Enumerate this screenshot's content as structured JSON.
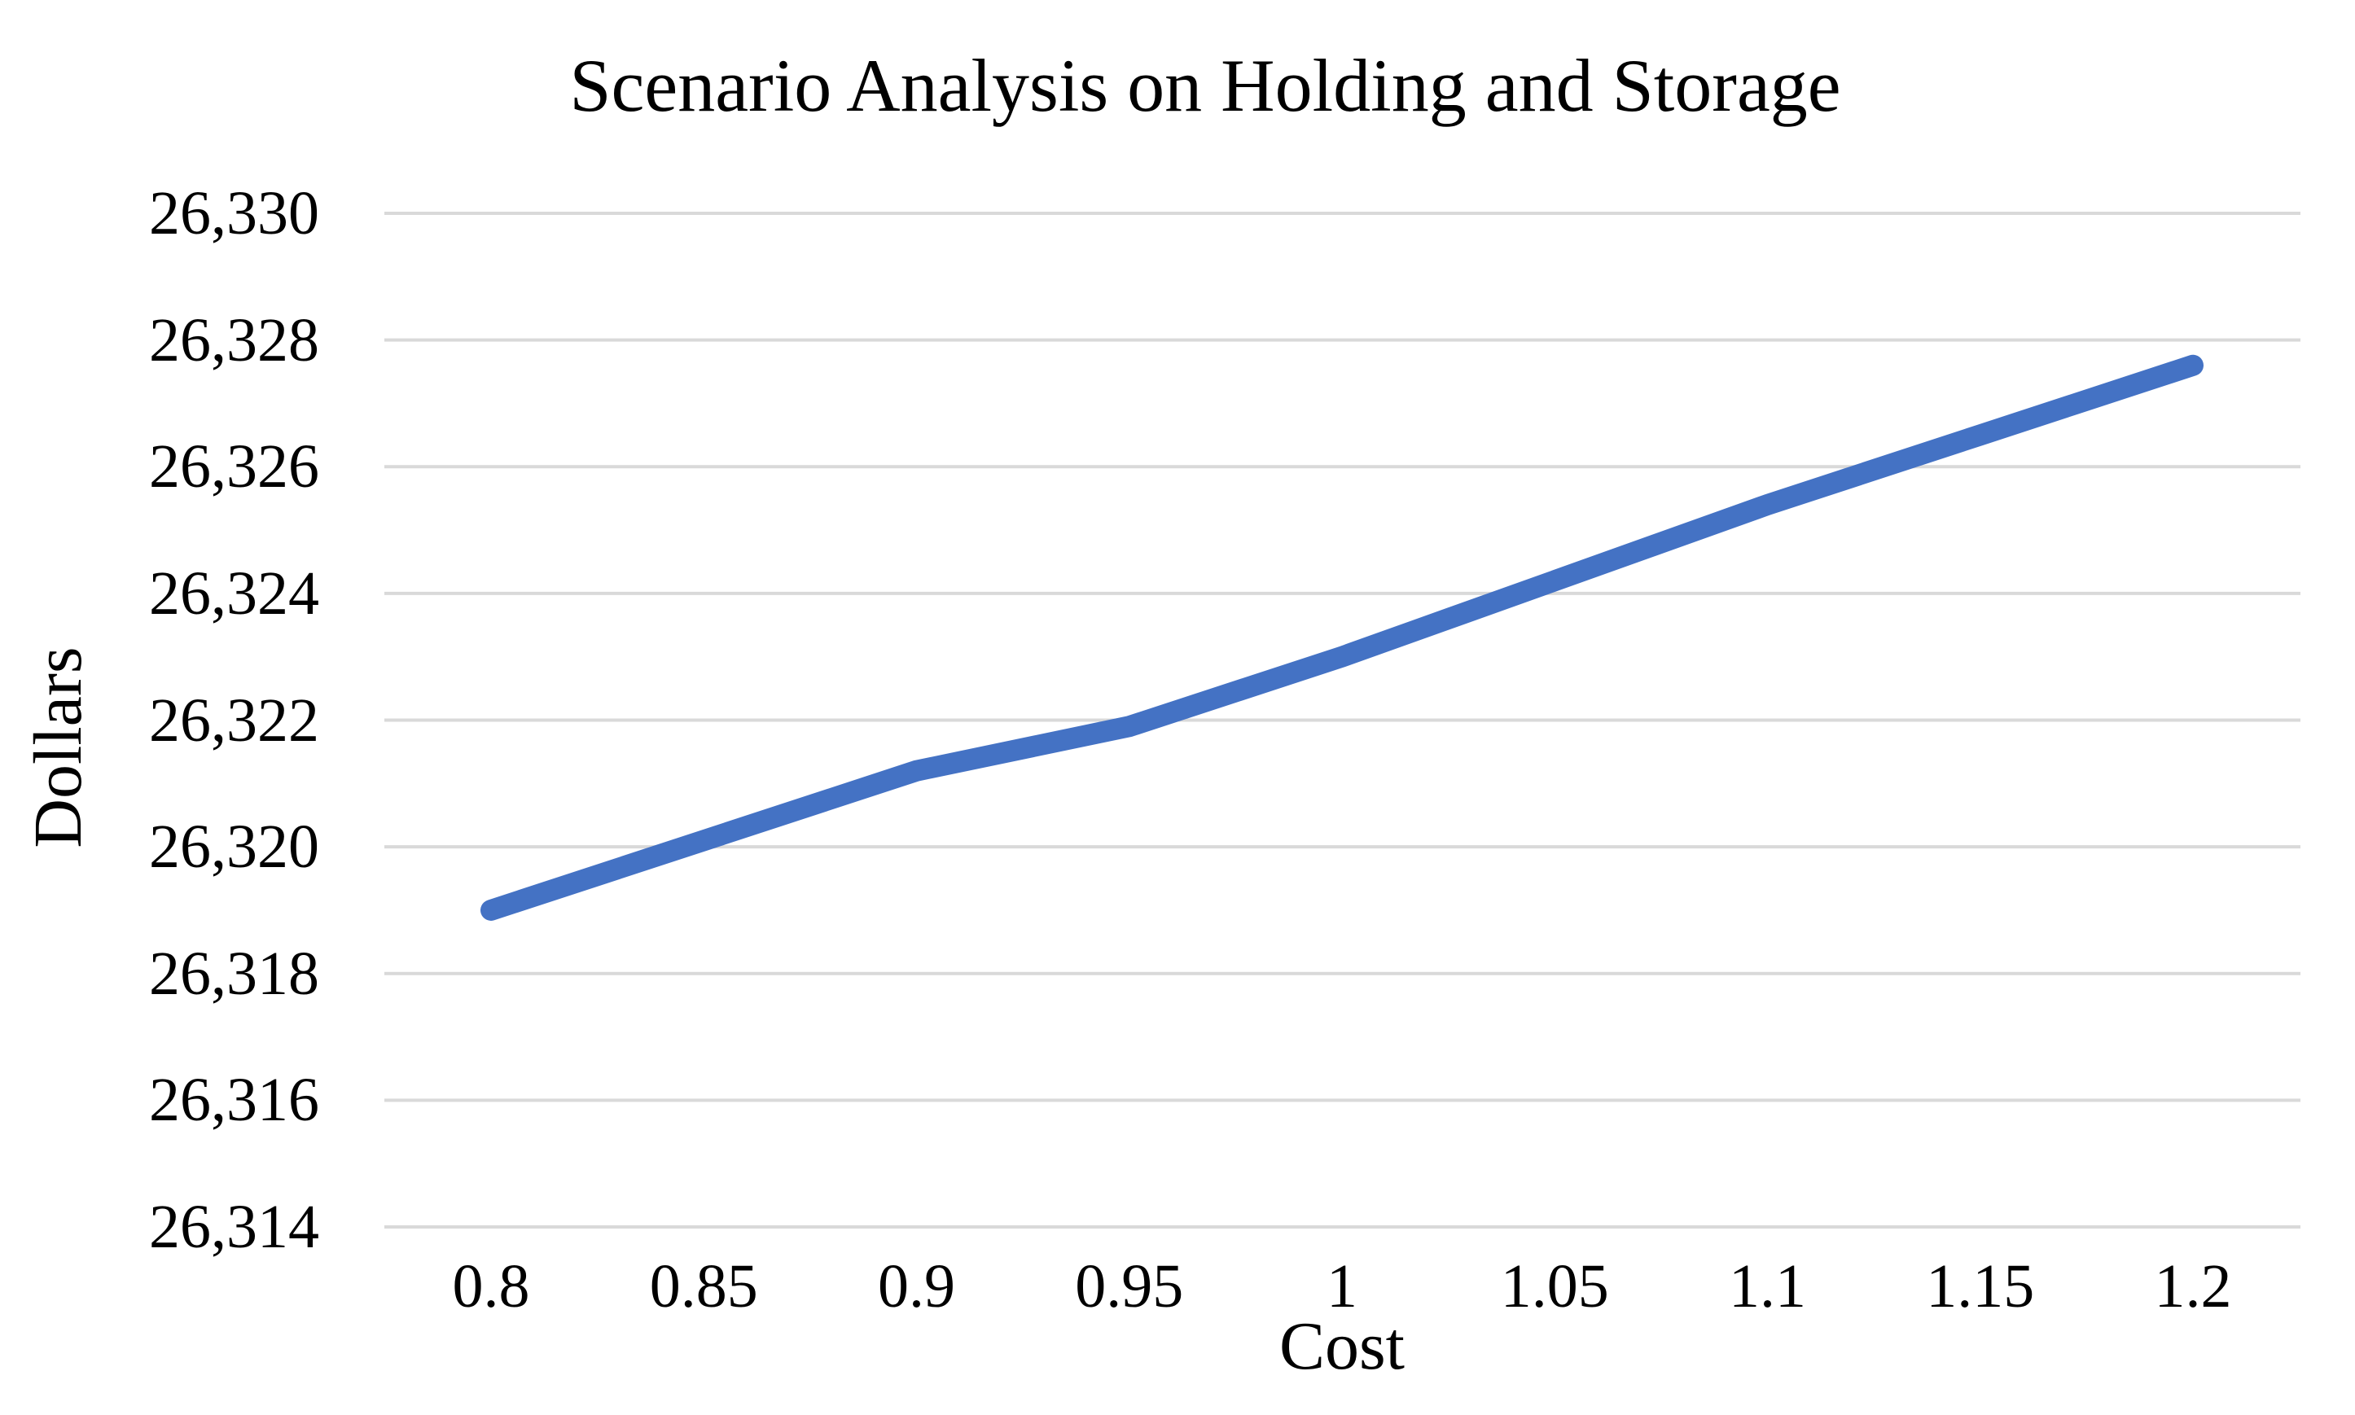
{
  "chart_data": {
    "type": "line",
    "title": "Scenario Analysis on Holding and Storage",
    "xlabel": "Cost",
    "ylabel": "Dollars",
    "x": [
      0.8,
      0.85,
      0.9,
      0.95,
      1.0,
      1.05,
      1.1,
      1.15,
      1.2
    ],
    "x_tick_labels": [
      "0.8",
      "0.85",
      "0.9",
      "0.95",
      "1",
      "1.05",
      "1.1",
      "1.15",
      "1.2"
    ],
    "values": [
      26319.0,
      26320.1,
      26321.2,
      26321.9,
      26323.0,
      26324.2,
      26325.4,
      26326.5,
      26327.6
    ],
    "y_ticks": [
      26314,
      26316,
      26318,
      26320,
      26322,
      26324,
      26326,
      26328,
      26330
    ],
    "y_tick_labels": [
      "26,314",
      "26,316",
      "26,318",
      "26,320",
      "26,322",
      "26,324",
      "26,326",
      "26,328",
      "26,330"
    ],
    "xlim": [
      0.8,
      1.2
    ],
    "ylim": [
      26314,
      26330
    ],
    "grid": "horizontal",
    "legend": "none",
    "line_color": "#4472C4",
    "gridline_color": "#D9D9D9",
    "text_color": "#000000",
    "background_color": "#FFFFFF"
  }
}
